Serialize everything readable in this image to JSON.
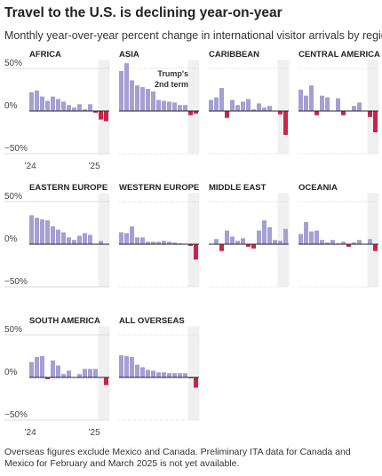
{
  "title": "Travel to the U.S. is declining year-on-year",
  "subtitle": "Monthly year-over-year percent change in international visitor arrivals by region",
  "note": "Overseas figures exclude Mexico and Canada. Preliminary ITA data for Canada and Mexico for February and March 2025 is not yet available.",
  "colors": {
    "positive": "#a59fd4",
    "negative": "#c7254e",
    "shade": "#f0f0f0",
    "zero_line": "#222222",
    "grid": "#dddddd"
  },
  "annotation": {
    "line1": "Trump's",
    "line2": "2nd term",
    "panel": "ASIA"
  },
  "chart_data": {
    "type": "bar",
    "ylim": [
      -50,
      60
    ],
    "y_ticks": [
      "50%",
      "0%",
      "−50%"
    ],
    "x_ticks": [
      "’24",
      "’25"
    ],
    "months": [
      "Jan 2024",
      "Feb 2024",
      "Mar 2024",
      "Apr 2024",
      "May 2024",
      "Jun 2024",
      "Jul 2024",
      "Aug 2024",
      "Sep 2024",
      "Oct 2024",
      "Nov 2024",
      "Dec 2024",
      "Jan 2025",
      "Feb 2025",
      "Mar 2025"
    ],
    "shaded_period": [
      "Feb 2025",
      "Mar 2025"
    ],
    "series": [
      {
        "name": "AFRICA",
        "values": [
          22,
          24,
          17,
          12,
          17,
          14,
          11,
          7,
          4,
          8,
          2,
          8,
          -2,
          -10,
          -12
        ]
      },
      {
        "name": "ASIA",
        "values": [
          47,
          56,
          36,
          30,
          28,
          26,
          23,
          13,
          12,
          11,
          10,
          7,
          7,
          -5,
          -3
        ]
      },
      {
        "name": "CARIBBEAN",
        "values": [
          13,
          16,
          27,
          -8,
          13,
          7,
          11,
          14,
          2,
          9,
          4,
          6,
          0,
          -4,
          -28
        ]
      },
      {
        "name": "CENTRAL AMERICA",
        "values": [
          25,
          18,
          30,
          -5,
          18,
          16,
          0,
          15,
          -5,
          0,
          6,
          10,
          0,
          -7,
          -25
        ]
      },
      {
        "name": "EASTERN EUROPE",
        "values": [
          34,
          31,
          29,
          28,
          21,
          17,
          14,
          8,
          5,
          10,
          13,
          11,
          0,
          4,
          0
        ]
      },
      {
        "name": "WESTERN EUROPE",
        "values": [
          14,
          13,
          21,
          8,
          8,
          3,
          3,
          3,
          4,
          3,
          2,
          1,
          0,
          -2,
          -18
        ]
      },
      {
        "name": "MIDDLE EAST",
        "values": [
          0,
          6,
          -8,
          16,
          9,
          4,
          7,
          -3,
          -5,
          16,
          28,
          20,
          5,
          4,
          18
        ]
      },
      {
        "name": "OCEANIA",
        "values": [
          12,
          26,
          15,
          16,
          5,
          2,
          5,
          1,
          3,
          -3,
          2,
          5,
          0,
          6,
          -8
        ]
      },
      {
        "name": "SOUTH AMERICA",
        "values": [
          18,
          24,
          25,
          -2,
          20,
          14,
          4,
          8,
          0,
          4,
          10,
          10,
          10,
          0,
          -9
        ]
      },
      {
        "name": "ALL OVERSEAS",
        "values": [
          26,
          25,
          24,
          15,
          12,
          9,
          8,
          6,
          6,
          5,
          5,
          5,
          5,
          -1,
          -12
        ]
      }
    ]
  }
}
